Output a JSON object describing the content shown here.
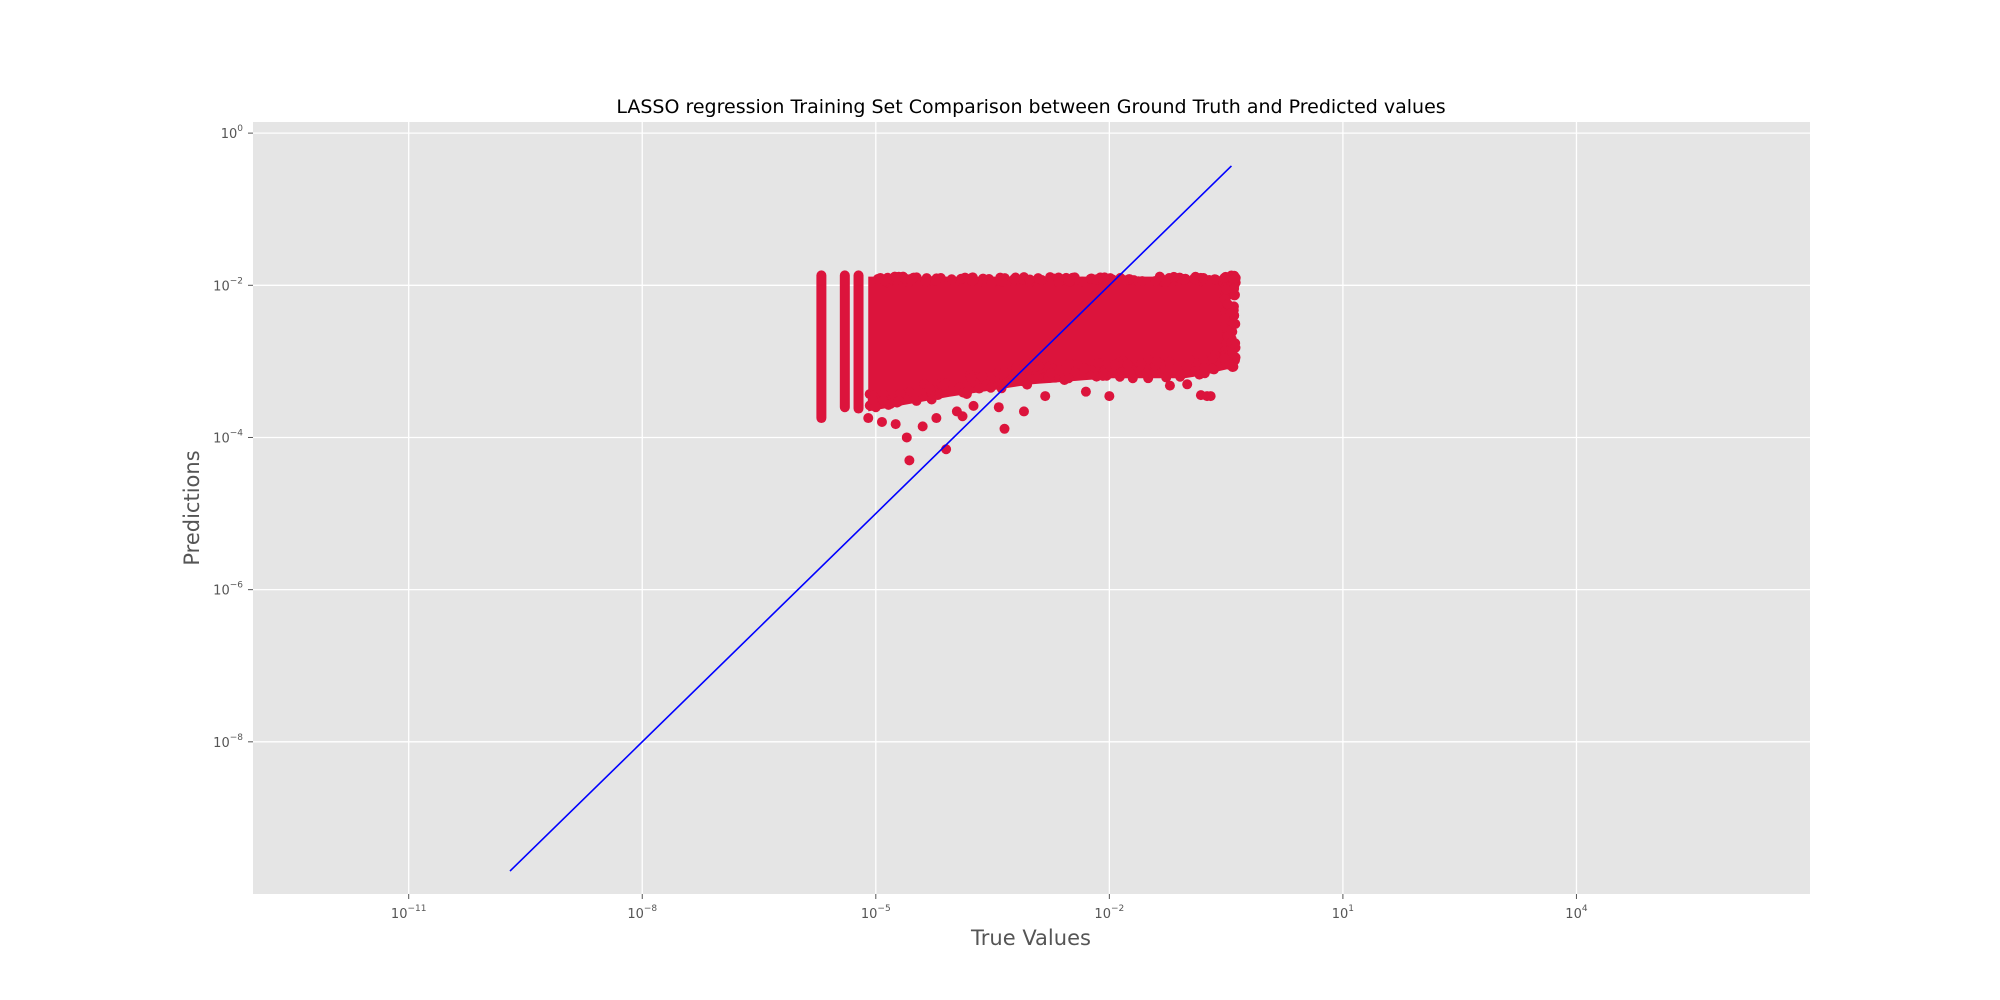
{
  "chart_data": {
    "type": "scatter",
    "title": "LASSO regression Training Set Comparison between Ground Truth and Predicted values",
    "xlabel": "True Values",
    "ylabel": "Predictions",
    "xscale": "log",
    "yscale": "log",
    "xlim": [
      1e-13,
      10000000.0
    ],
    "ylim": [
      1e-10,
      1.4
    ],
    "grid": true,
    "style": "ggplot",
    "x_ticks": [
      {
        "value": 1e-11,
        "base": "10",
        "exp": "−11"
      },
      {
        "value": 1e-08,
        "base": "10",
        "exp": "−8"
      },
      {
        "value": 1e-05,
        "base": "10",
        "exp": "−5"
      },
      {
        "value": 0.01,
        "base": "10",
        "exp": "−2"
      },
      {
        "value": 10.0,
        "base": "10",
        "exp": "1"
      },
      {
        "value": 10000.0,
        "base": "10",
        "exp": "4"
      }
    ],
    "y_ticks": [
      {
        "value": 1.0,
        "base": "10",
        "exp": "0"
      },
      {
        "value": 0.01,
        "base": "10",
        "exp": "−2"
      },
      {
        "value": 0.0001,
        "base": "10",
        "exp": "−4"
      },
      {
        "value": 1e-06,
        "base": "10",
        "exp": "−6"
      },
      {
        "value": 1e-08,
        "base": "10",
        "exp": "−8"
      }
    ],
    "scatter_color": "#dc143c",
    "line_color": "#0000ff",
    "reference_line": {
      "name": "",
      "x": [
        2e-10,
        0.37
      ],
      "y": [
        2e-10,
        0.37
      ]
    },
    "series": [
      {
        "name": "",
        "summary": {
          "x_range": [
            2e-06,
            0.42
          ],
          "y_range": [
            5e-05,
            0.0135
          ]
        },
        "clusters": [
          {
            "x": 2e-06,
            "y_range": [
              0.00018,
              0.0135
            ]
          },
          {
            "x": 4e-06,
            "y_range": [
              0.00025,
              0.0135
            ]
          },
          {
            "x": 6e-06,
            "y_range": [
              0.00024,
              0.0135
            ]
          }
        ],
        "band": {
          "x_range": [
            8e-06,
            0.35
          ],
          "y_upper": 0.013,
          "y_lower": [
            [
              8e-06,
              0.00022
            ],
            [
              0.0001,
              0.00035
            ],
            [
              0.001,
              0.0005
            ],
            [
              0.01,
              0.0006
            ],
            [
              0.1,
              0.0006
            ],
            [
              0.35,
              0.0008
            ]
          ]
        },
        "points": [
          [
            8e-06,
            0.00018
          ],
          [
            1.2e-05,
            0.00016
          ],
          [
            1.8e-05,
            0.00015
          ],
          [
            2.5e-05,
            0.0001
          ],
          [
            2.7e-05,
            5e-05
          ],
          [
            4e-05,
            0.00014
          ],
          [
            6e-05,
            0.00018
          ],
          [
            8e-05,
            7e-05
          ],
          [
            0.00011,
            0.00022
          ],
          [
            0.00013,
            0.00019
          ],
          [
            0.00018,
            0.00026
          ],
          [
            0.00038,
            0.00025
          ],
          [
            0.00045,
            0.00013
          ],
          [
            0.0008,
            0.00022
          ],
          [
            0.0003,
            0.00045
          ],
          [
            0.0015,
            0.00035
          ],
          [
            0.005,
            0.0004
          ],
          [
            0.01,
            0.00035
          ],
          [
            0.02,
            0.0006
          ],
          [
            0.06,
            0.00048
          ],
          [
            0.1,
            0.0005
          ],
          [
            0.15,
            0.00036
          ],
          [
            0.18,
            0.00035
          ],
          [
            0.2,
            0.00035
          ],
          [
            0.3,
            0.0011
          ],
          [
            0.35,
            0.0009
          ],
          [
            0.38,
            0.0013
          ],
          [
            0.4,
            0.004
          ],
          [
            0.4,
            0.009
          ],
          [
            0.42,
            0.0125
          ],
          [
            0.3,
            0.0125
          ],
          [
            0.00015,
            0.0004
          ],
          [
            2e-05,
            0.0003
          ],
          [
            1e-05,
            0.00025
          ],
          [
            0.003,
            0.0006
          ],
          [
            0.03,
            0.0007
          ]
        ]
      }
    ]
  }
}
